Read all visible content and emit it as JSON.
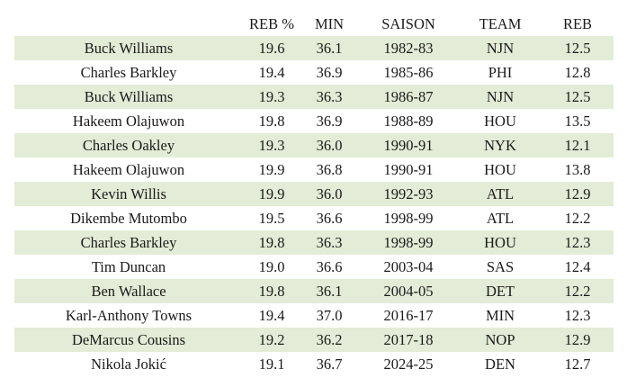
{
  "table": {
    "headers": {
      "player": "",
      "reb_pct": "REB %",
      "min": "MIN",
      "season": "SAISON",
      "team": "TEAM",
      "reb": "REB"
    },
    "rows": [
      {
        "player": "Buck Williams",
        "reb_pct": "19.6",
        "min": "36.1",
        "season": "1982-83",
        "team": "NJN",
        "reb": "12.5"
      },
      {
        "player": "Charles Barkley",
        "reb_pct": "19.4",
        "min": "36.9",
        "season": "1985-86",
        "team": "PHI",
        "reb": "12.8"
      },
      {
        "player": "Buck Williams",
        "reb_pct": "19.3",
        "min": "36.3",
        "season": "1986-87",
        "team": "NJN",
        "reb": "12.5"
      },
      {
        "player": "Hakeem Olajuwon",
        "reb_pct": "19.8",
        "min": "36.9",
        "season": "1988-89",
        "team": "HOU",
        "reb": "13.5"
      },
      {
        "player": "Charles Oakley",
        "reb_pct": "19.3",
        "min": "36.0",
        "season": "1990-91",
        "team": "NYK",
        "reb": "12.1"
      },
      {
        "player": "Hakeem Olajuwon",
        "reb_pct": "19.9",
        "min": "36.8",
        "season": "1990-91",
        "team": "HOU",
        "reb": "13.8"
      },
      {
        "player": "Kevin Willis",
        "reb_pct": "19.9",
        "min": "36.0",
        "season": "1992-93",
        "team": "ATL",
        "reb": "12.9"
      },
      {
        "player": "Dikembe Mutombo",
        "reb_pct": "19.5",
        "min": "36.6",
        "season": "1998-99",
        "team": "ATL",
        "reb": "12.2"
      },
      {
        "player": "Charles Barkley",
        "reb_pct": "19.8",
        "min": "36.3",
        "season": "1998-99",
        "team": "HOU",
        "reb": "12.3"
      },
      {
        "player": "Tim Duncan",
        "reb_pct": "19.0",
        "min": "36.6",
        "season": "2003-04",
        "team": "SAS",
        "reb": "12.4"
      },
      {
        "player": "Ben Wallace",
        "reb_pct": "19.8",
        "min": "36.1",
        "season": "2004-05",
        "team": "DET",
        "reb": "12.2"
      },
      {
        "player": "Karl-Anthony Towns",
        "reb_pct": "19.4",
        "min": "37.0",
        "season": "2016-17",
        "team": "MIN",
        "reb": "12.3"
      },
      {
        "player": "DeMarcus Cousins",
        "reb_pct": "19.2",
        "min": "36.2",
        "season": "2017-18",
        "team": "NOP",
        "reb": "12.9"
      },
      {
        "player": "Nikola Jokić",
        "reb_pct": "19.1",
        "min": "36.7",
        "season": "2024-25",
        "team": "DEN",
        "reb": "12.7"
      }
    ]
  },
  "colors": {
    "stripe": "#e3ecd6",
    "background": "#ffffff",
    "text": "#1a1a1a"
  }
}
